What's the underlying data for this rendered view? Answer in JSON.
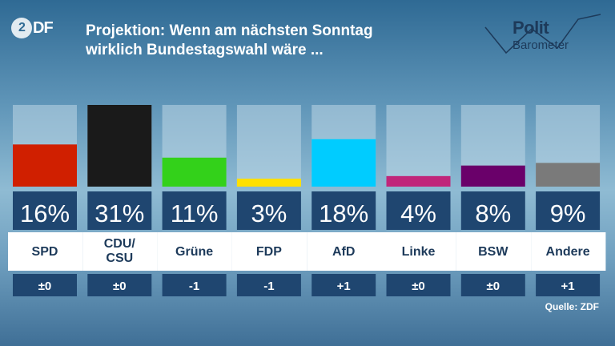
{
  "branding": {
    "logo": "ZDF",
    "logo_circle": "2",
    "logo_rest": "DF",
    "polit_line1": "Polit",
    "polit_line2": "Barometer"
  },
  "title_line1": "Projektion: Wenn am nächsten Sonntag",
  "title_line2": "wirklich Bundestagswahl wäre ...",
  "source": "Quelle: ZDF",
  "chart_data": {
    "type": "bar",
    "categories": [
      "SPD",
      "CDU/\nCSU",
      "Grüne",
      "FDP",
      "AfD",
      "Linke",
      "BSW",
      "Andere"
    ],
    "values": [
      16,
      31,
      11,
      3,
      18,
      4,
      8,
      9
    ],
    "value_labels": [
      "16%",
      "31%",
      "11%",
      "3%",
      "18%",
      "4%",
      "8%",
      "9%"
    ],
    "changes": [
      "±0",
      "±0",
      "-1",
      "-1",
      "+1",
      "±0",
      "±0",
      "+1"
    ],
    "colors": [
      "#d01f00",
      "#1a1a1a",
      "#33d11a",
      "#ffe000",
      "#00ccff",
      "#c0267a",
      "#6a006a",
      "#7a7a7a"
    ],
    "ylim": [
      0,
      31
    ],
    "legend": "none",
    "grid": false
  }
}
